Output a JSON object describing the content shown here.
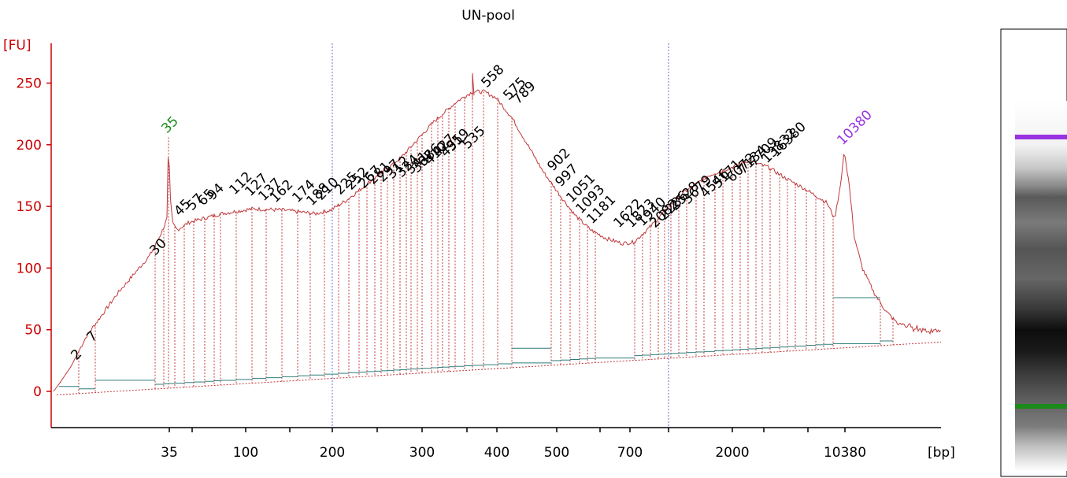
{
  "colors": {
    "axis": "#cc0000",
    "trace": "#c0393b",
    "baseline": "#2f7d7a",
    "marker_lower": "#1a8a1a",
    "marker_upper": "#9932e0",
    "text": "#000000",
    "divider": "#6b6bd6"
  },
  "chart_data": {
    "type": "line",
    "title": "UN-pool",
    "ylabel": "[FU]",
    "xlabel": "[bp]",
    "ylim": [
      -28,
      285
    ],
    "y_ticks": [
      0,
      50,
      100,
      150,
      200,
      250
    ],
    "x_ticks": [
      "35",
      "100",
      "200",
      "300",
      "400",
      "500",
      "700",
      "2000",
      "10380"
    ],
    "lower_marker": {
      "label": "35",
      "value": 206
    },
    "upper_marker": {
      "label": "10380",
      "value": 195
    },
    "peak_labels": [
      "2",
      "7",
      "30",
      "45",
      "57",
      "65",
      "94",
      "112",
      "127",
      "137",
      "162",
      "174",
      "188",
      "210",
      "225",
      "252",
      "267",
      "281",
      "297",
      "312",
      "324",
      "341",
      "367",
      "386",
      "410",
      "427",
      "495",
      "519",
      "535",
      "558",
      "575",
      "789",
      "902",
      "997",
      "1051",
      "1093",
      "1181",
      "1622",
      "1823",
      "1940",
      "2082",
      "2286",
      "2528",
      "3679",
      "4546",
      "5171",
      "6072",
      "7134",
      "7709",
      "13832",
      "16380"
    ]
  },
  "gel": {
    "label": "gel lane"
  }
}
